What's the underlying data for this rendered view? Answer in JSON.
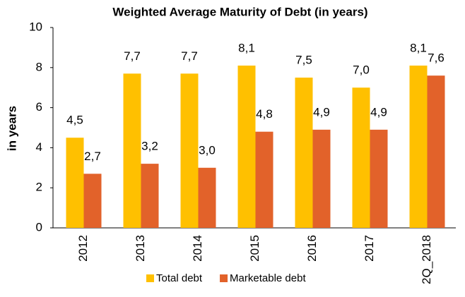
{
  "chart_data": {
    "type": "bar",
    "title": "Weighted Average Maturity of Debt (in years)",
    "y_label": "in years",
    "categories": [
      "2012",
      "2013",
      "2014",
      "2015",
      "2016",
      "2017",
      "2Q_2018"
    ],
    "series": [
      {
        "name": "Total debt",
        "color": "#ffc000",
        "values": [
          4.5,
          7.7,
          7.7,
          8.1,
          7.5,
          7.0,
          8.1
        ],
        "value_labels": [
          "4,5",
          "7,7",
          "7,7",
          "8,1",
          "7,5",
          "7,0",
          "8,1"
        ]
      },
      {
        "name": "Marketable debt",
        "color": "#e2622a",
        "values": [
          2.7,
          3.2,
          3.0,
          4.8,
          4.9,
          4.9,
          7.6
        ],
        "value_labels": [
          "2,7",
          "3,2",
          "3,0",
          "4,8",
          "4,9",
          "4,9",
          "7,6"
        ]
      }
    ],
    "ylim": [
      0,
      10
    ],
    "yticks": [
      0,
      2,
      4,
      6,
      8,
      10
    ],
    "grid": false,
    "legend": "bottom"
  }
}
